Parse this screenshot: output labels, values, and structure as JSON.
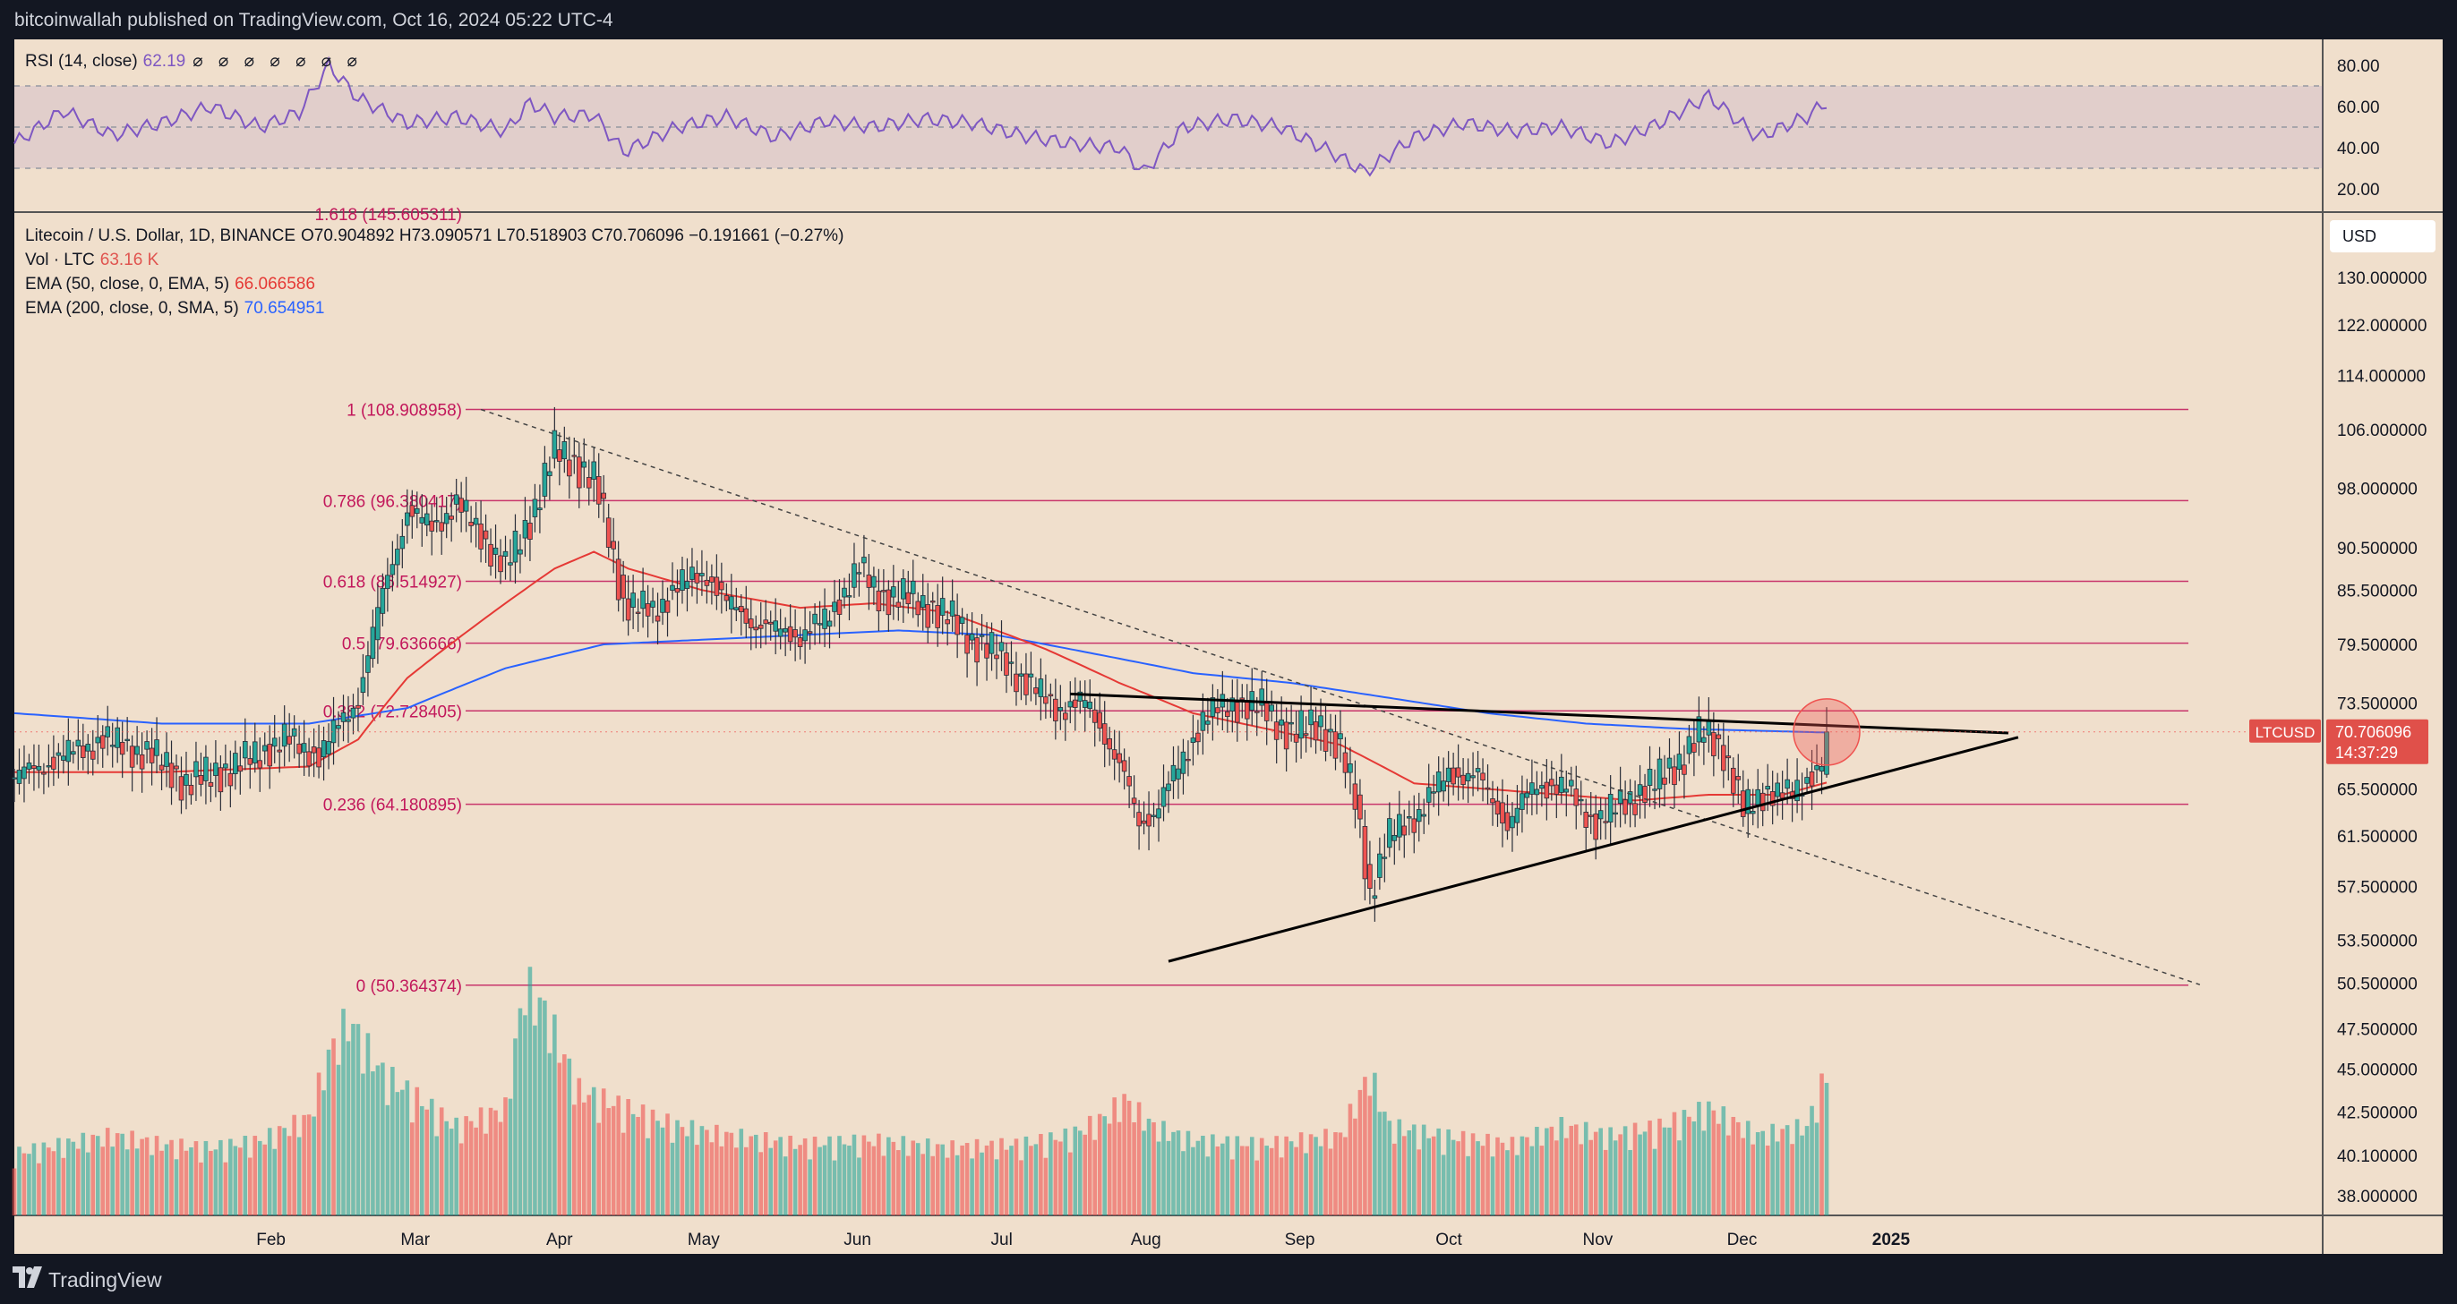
{
  "header": {
    "text": "bitcoinwallah published on TradingView.com, Oct 16, 2024 05:22 UTC-4"
  },
  "footer": {
    "brand": "TradingView"
  },
  "colors": {
    "background": "#f0dfcc",
    "frame": "#131722",
    "up": "#26a69a",
    "down": "#ef5350",
    "fib": "#c2185b",
    "ema50": "#e53935",
    "ema200": "#2962ff",
    "rsi": "#7e57c2"
  },
  "rsi": {
    "label": "RSI (14, close)",
    "value": "62.19",
    "circles": "⌀ ⌀ ⌀ ⌀ ⌀ ⌀ ⌀"
  },
  "legend": {
    "symbol": "Litecoin / U.S. Dollar, 1D, BINANCE",
    "ohlc": "O70.904892 H73.090571 L70.518903 C70.706096 −0.191661 (−0.27%)",
    "vol_label": "Vol · LTC",
    "vol_value": "63.16 K",
    "ema50_label": "EMA (50, close, 0, EMA, 5)",
    "ema50_value": "66.066586",
    "ema200_label": "EMA (200, close, 0, SMA, 5)",
    "ema200_value": "70.654951"
  },
  "currency": "USD",
  "price_tag": {
    "symbol": "LTCUSD",
    "price": "70.706096",
    "countdown": "14:37:29"
  },
  "chart_data": {
    "type": "candlestick",
    "title": "Litecoin / U.S. Dollar, 1D, BINANCE",
    "x_ticks": [
      "Feb",
      "Mar",
      "Apr",
      "May",
      "Jun",
      "Jul",
      "Aug",
      "Sep",
      "Oct",
      "Nov",
      "Dec",
      "2025"
    ],
    "y_ticks": [
      "130.000000",
      "122.000000",
      "114.000000",
      "106.000000",
      "98.000000",
      "90.500000",
      "85.500000",
      "79.500000",
      "73.500000",
      "65.500000",
      "61.500000",
      "57.500000",
      "53.500000",
      "50.500000",
      "47.500000",
      "45.000000",
      "42.500000",
      "40.100000",
      "38.000000"
    ],
    "rsi_ticks": [
      "80.00",
      "60.00",
      "40.00",
      "20.00"
    ],
    "fib_levels": [
      {
        "ratio": "1",
        "label": "1 (108.908958)",
        "value": 108.908958
      },
      {
        "ratio": "0.786",
        "label": "0.786 (96.380417)",
        "value": 96.380417
      },
      {
        "ratio": "0.618",
        "label": "0.618 (86.514927)",
        "value": 86.514927
      },
      {
        "ratio": "0.5",
        "label": "0.5 (79.636666)",
        "value": 79.636666
      },
      {
        "ratio": "0.382",
        "label": "0.382 (72.728405)",
        "value": 72.728405
      },
      {
        "ratio": "0.236",
        "label": "0.236 (64.180895)",
        "value": 64.180895
      },
      {
        "ratio": "0",
        "label": "0 (50.364374)",
        "value": 50.364374
      }
    ],
    "fib_partial_label": "1.618 (145.605311)",
    "ohlc_last": {
      "open": 70.904892,
      "high": 73.090571,
      "low": 70.518903,
      "close": 70.706096
    },
    "closes": [
      [
        0,
        66.5
      ],
      [
        10,
        68.5
      ],
      [
        18,
        70.0
      ],
      [
        28,
        68.5
      ],
      [
        35,
        66.0
      ],
      [
        45,
        67.5
      ],
      [
        55,
        70.0
      ],
      [
        62,
        68.5
      ],
      [
        70,
        74.0
      ],
      [
        75,
        85.0
      ],
      [
        80,
        95.0
      ],
      [
        85,
        93.0
      ],
      [
        90,
        96.0
      ],
      [
        95,
        92.0
      ],
      [
        100,
        88.0
      ],
      [
        105,
        94.0
      ],
      [
        110,
        103.0
      ],
      [
        113,
        102.0
      ],
      [
        118,
        99.0
      ],
      [
        121,
        92.0
      ],
      [
        124,
        84.0
      ],
      [
        130,
        83.0
      ],
      [
        135,
        86.0
      ],
      [
        141,
        87.5
      ],
      [
        145,
        84.0
      ],
      [
        150,
        82.0
      ],
      [
        155,
        81.0
      ],
      [
        160,
        80.5
      ],
      [
        165,
        82.0
      ],
      [
        172,
        88.0
      ],
      [
        176,
        85.0
      ],
      [
        183,
        84.5
      ],
      [
        190,
        82.5
      ],
      [
        195,
        80.0
      ],
      [
        200,
        78.5
      ],
      [
        205,
        76.0
      ],
      [
        212,
        73.0
      ],
      [
        218,
        73.5
      ],
      [
        222,
        70.5
      ],
      [
        226,
        66.5
      ],
      [
        229,
        62.5
      ],
      [
        232,
        63.5
      ],
      [
        236,
        66.5
      ],
      [
        242,
        72.0
      ],
      [
        248,
        73.5
      ],
      [
        254,
        73.0
      ],
      [
        260,
        70.5
      ],
      [
        266,
        71.5
      ],
      [
        270,
        69.0
      ],
      [
        273,
        64.5
      ],
      [
        276,
        57.0
      ],
      [
        280,
        61.5
      ],
      [
        286,
        63.5
      ],
      [
        292,
        67.0
      ],
      [
        298,
        66.5
      ],
      [
        304,
        62.5
      ],
      [
        310,
        66.0
      ],
      [
        316,
        65.5
      ],
      [
        322,
        62.5
      ],
      [
        328,
        64.5
      ],
      [
        334,
        66.0
      ],
      [
        340,
        68.5
      ],
      [
        344,
        70.8
      ],
      [
        348,
        69.0
      ],
      [
        352,
        63.5
      ],
      [
        357,
        65.5
      ],
      [
        362,
        64.8
      ],
      [
        365,
        66.5
      ],
      [
        368,
        68.0
      ],
      [
        369,
        70.7
      ]
    ],
    "ema50": [
      [
        0,
        67.0
      ],
      [
        30,
        67.0
      ],
      [
        60,
        67.5
      ],
      [
        70,
        70.0
      ],
      [
        80,
        76.0
      ],
      [
        90,
        80.0
      ],
      [
        100,
        84.0
      ],
      [
        110,
        88.0
      ],
      [
        118,
        90.0
      ],
      [
        125,
        88.0
      ],
      [
        140,
        85.5
      ],
      [
        160,
        83.5
      ],
      [
        175,
        84.0
      ],
      [
        190,
        83.0
      ],
      [
        210,
        79.0
      ],
      [
        225,
        75.5
      ],
      [
        240,
        72.5
      ],
      [
        255,
        71.0
      ],
      [
        270,
        69.5
      ],
      [
        285,
        66.0
      ],
      [
        300,
        65.5
      ],
      [
        315,
        65.0
      ],
      [
        330,
        64.5
      ],
      [
        345,
        65.0
      ],
      [
        360,
        65.0
      ],
      [
        369,
        66.07
      ]
    ],
    "ema200": [
      [
        0,
        72.5
      ],
      [
        30,
        71.5
      ],
      [
        60,
        71.5
      ],
      [
        80,
        73.0
      ],
      [
        100,
        77.0
      ],
      [
        120,
        79.5
      ],
      [
        140,
        80.0
      ],
      [
        160,
        80.5
      ],
      [
        180,
        81.0
      ],
      [
        200,
        80.5
      ],
      [
        220,
        78.5
      ],
      [
        240,
        76.5
      ],
      [
        260,
        75.5
      ],
      [
        280,
        74.0
      ],
      [
        300,
        72.5
      ],
      [
        320,
        71.5
      ],
      [
        340,
        71.0
      ],
      [
        369,
        70.65
      ]
    ],
    "rsi_values": [
      [
        0,
        42
      ],
      [
        10,
        58
      ],
      [
        20,
        46
      ],
      [
        30,
        52
      ],
      [
        40,
        60
      ],
      [
        50,
        50
      ],
      [
        58,
        57
      ],
      [
        64,
        80
      ],
      [
        70,
        64
      ],
      [
        80,
        52
      ],
      [
        90,
        55
      ],
      [
        100,
        48
      ],
      [
        105,
        62
      ],
      [
        110,
        55
      ],
      [
        118,
        56
      ],
      [
        124,
        38
      ],
      [
        135,
        50
      ],
      [
        145,
        55
      ],
      [
        155,
        45
      ],
      [
        165,
        53
      ],
      [
        175,
        50
      ],
      [
        185,
        54
      ],
      [
        195,
        52
      ],
      [
        205,
        46
      ],
      [
        215,
        42
      ],
      [
        225,
        40
      ],
      [
        230,
        28
      ],
      [
        238,
        50
      ],
      [
        248,
        54
      ],
      [
        258,
        50
      ],
      [
        268,
        38
      ],
      [
        275,
        28
      ],
      [
        285,
        45
      ],
      [
        295,
        52
      ],
      [
        305,
        48
      ],
      [
        315,
        50
      ],
      [
        325,
        42
      ],
      [
        335,
        52
      ],
      [
        345,
        65
      ],
      [
        355,
        45
      ],
      [
        365,
        55
      ],
      [
        369,
        62.19
      ]
    ],
    "volume": [
      [
        0,
        35
      ],
      [
        10,
        40
      ],
      [
        20,
        45
      ],
      [
        30,
        40
      ],
      [
        40,
        38
      ],
      [
        50,
        42
      ],
      [
        60,
        55
      ],
      [
        64,
        90
      ],
      [
        68,
        110
      ],
      [
        75,
        80
      ],
      [
        80,
        70
      ],
      [
        90,
        50
      ],
      [
        100,
        60
      ],
      [
        104,
        130
      ],
      [
        108,
        115
      ],
      [
        115,
        70
      ],
      [
        125,
        60
      ],
      [
        135,
        50
      ],
      [
        145,
        45
      ],
      [
        160,
        40
      ],
      [
        175,
        42
      ],
      [
        190,
        38
      ],
      [
        205,
        40
      ],
      [
        215,
        45
      ],
      [
        222,
        55
      ],
      [
        226,
        65
      ],
      [
        232,
        50
      ],
      [
        240,
        42
      ],
      [
        255,
        40
      ],
      [
        270,
        45
      ],
      [
        276,
        80
      ],
      [
        280,
        50
      ],
      [
        290,
        45
      ],
      [
        305,
        40
      ],
      [
        315,
        50
      ],
      [
        325,
        45
      ],
      [
        335,
        50
      ],
      [
        345,
        60
      ],
      [
        355,
        45
      ],
      [
        365,
        50
      ],
      [
        369,
        80
      ]
    ],
    "trendlines": {
      "upper": [
        [
          215,
          74.4
        ],
        [
          406,
          70.6
        ]
      ],
      "lower": [
        [
          235,
          52.0
        ],
        [
          408,
          70.2
        ]
      ],
      "dashed": [
        [
          95,
          108.9
        ],
        [
          445,
          50.4
        ]
      ]
    },
    "highlight": {
      "x": 369,
      "y": 70.7
    },
    "x_range": [
      0,
      470
    ],
    "y_range_price": [
      37.0,
      138.0
    ]
  }
}
